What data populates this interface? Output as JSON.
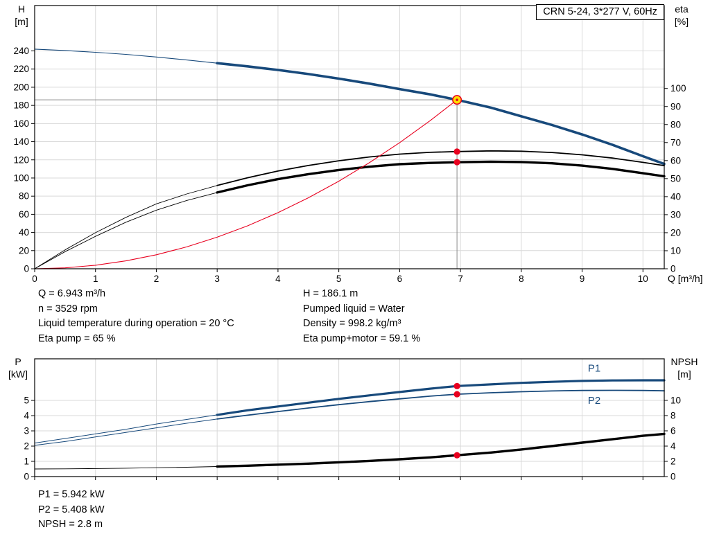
{
  "colors": {
    "curve_blue": "#17497b",
    "curve_black": "#000000",
    "curve_red": "#e8001f",
    "marker_red": "#e8001f",
    "op_fill": "#ffdf00",
    "grid": "#d9d9d9",
    "marker_line": "#8a8a8a"
  },
  "top_info": {
    "left": [
      "Q = 6.943 m³/h",
      "n = 3529 rpm",
      "Liquid temperature during operation = 20 °C",
      "Eta pump = 65 %"
    ],
    "right": [
      "H = 186.1 m",
      "Pumped liquid = Water",
      "Density = 998.2 kg/m³",
      "Eta pump+motor = 59.1 %"
    ]
  },
  "bottom_info": [
    "P1 = 5.942 kW",
    "P2 = 5.408 kW",
    "NPSH = 2.8 m"
  ],
  "chart_data": [
    {
      "name": "hq-eta-chart",
      "type": "line",
      "title": "CRN 5-24, 3*277 V, 60Hz",
      "x_axis": {
        "label": "Q [m³/h]",
        "min": 0,
        "max": 10.35,
        "ticks": [
          0,
          1,
          2,
          3,
          4,
          5,
          6,
          7,
          8,
          9,
          10
        ],
        "show_labels": true
      },
      "y_left": {
        "label": "H",
        "unit": "[m]",
        "min": 0,
        "max": 290,
        "ticks": [
          0,
          20,
          40,
          60,
          80,
          100,
          120,
          140,
          160,
          180,
          200,
          220,
          240
        ]
      },
      "y_right": {
        "label": "eta",
        "unit": "[%]",
        "min": 0,
        "max": 146,
        "ticks": [
          0,
          10,
          20,
          30,
          40,
          50,
          60,
          70,
          80,
          90,
          100
        ]
      },
      "marker_lines": [
        {
          "type": "v",
          "q": 6.943,
          "from": 0,
          "to": 186.1,
          "axis": "left"
        },
        {
          "type": "h",
          "v": 186.1,
          "from_q": 0,
          "to_q": 6.943,
          "axis": "left"
        }
      ],
      "series": [
        {
          "name": "head-curve-lead",
          "axis": "left",
          "color": "curve_blue",
          "width": 1.1,
          "points": [
            [
              0,
              242
            ],
            [
              0.5,
              240.5
            ],
            [
              1,
              238.5
            ],
            [
              1.5,
              236.2
            ],
            [
              2,
              233.3
            ],
            [
              2.5,
              230
            ],
            [
              3,
              226.5
            ]
          ]
        },
        {
          "name": "head-curve",
          "axis": "left",
          "color": "curve_blue",
          "width": 3.6,
          "points": [
            [
              3,
              226.5
            ],
            [
              3.5,
              223
            ],
            [
              4,
              219
            ],
            [
              4.5,
              214.5
            ],
            [
              5,
              209.5
            ],
            [
              5.5,
              204
            ],
            [
              6,
              198
            ],
            [
              6.5,
              192.2
            ],
            [
              6.943,
              186.1
            ],
            [
              7.5,
              177.5
            ],
            [
              8,
              168
            ],
            [
              8.5,
              158.5
            ],
            [
              9,
              148
            ],
            [
              9.5,
              136.5
            ],
            [
              10,
              124
            ],
            [
              10.35,
              115.5
            ]
          ]
        },
        {
          "name": "eta-pump-curve-lead",
          "axis": "right",
          "color": "curve_black",
          "width": 0.9,
          "points": [
            [
              0,
              0
            ],
            [
              0.5,
              10.5
            ],
            [
              1,
              20
            ],
            [
              1.5,
              28.5
            ],
            [
              2,
              36
            ],
            [
              2.5,
              41.5
            ],
            [
              3,
              46.2
            ]
          ]
        },
        {
          "name": "eta-pump-curve",
          "axis": "right",
          "color": "curve_black",
          "width": 1.8,
          "points": [
            [
              3,
              46.2
            ],
            [
              3.5,
              50.5
            ],
            [
              4,
              54.2
            ],
            [
              4.5,
              57.3
            ],
            [
              5,
              59.9
            ],
            [
              5.5,
              62
            ],
            [
              6,
              63.6
            ],
            [
              6.5,
              64.6
            ],
            [
              6.943,
              65
            ],
            [
              7.5,
              65.4
            ],
            [
              8,
              65.2
            ],
            [
              8.5,
              64.5
            ],
            [
              9,
              63.2
            ],
            [
              9.5,
              61.4
            ],
            [
              10,
              59
            ],
            [
              10.35,
              57.2
            ]
          ]
        },
        {
          "name": "eta-total-curve-lead",
          "axis": "right",
          "color": "curve_black",
          "width": 0.9,
          "points": [
            [
              0,
              0
            ],
            [
              0.5,
              9.5
            ],
            [
              1,
              18
            ],
            [
              1.5,
              25.8
            ],
            [
              2,
              32.5
            ],
            [
              2.5,
              37.9
            ],
            [
              3,
              42.3
            ]
          ]
        },
        {
          "name": "eta-total-curve",
          "axis": "right",
          "color": "curve_black",
          "width": 3.4,
          "points": [
            [
              3,
              42.3
            ],
            [
              3.5,
              46.3
            ],
            [
              4,
              49.7
            ],
            [
              4.5,
              52.5
            ],
            [
              5,
              54.8
            ],
            [
              5.5,
              56.6
            ],
            [
              6,
              58
            ],
            [
              6.5,
              58.7
            ],
            [
              6.943,
              59.1
            ],
            [
              7.5,
              59.4
            ],
            [
              8,
              59.2
            ],
            [
              8.5,
              58.5
            ],
            [
              9,
              57.2
            ],
            [
              9.5,
              55.4
            ],
            [
              10,
              53
            ],
            [
              10.35,
              51.3
            ]
          ]
        },
        {
          "name": "system-curve",
          "axis": "left",
          "color": "curve_red",
          "width": 1.1,
          "points": [
            [
              0,
              0
            ],
            [
              0.5,
              1
            ],
            [
              1,
              3.9
            ],
            [
              1.5,
              8.7
            ],
            [
              2,
              15.4
            ],
            [
              2.5,
              24.1
            ],
            [
              3,
              34.8
            ],
            [
              3.5,
              47.3
            ],
            [
              4,
              61.8
            ],
            [
              4.5,
              78.2
            ],
            [
              5,
              96.5
            ],
            [
              5.5,
              116.8
            ],
            [
              6,
              139
            ],
            [
              6.5,
              163.1
            ],
            [
              6.943,
              186.1
            ]
          ]
        }
      ],
      "point_markers": [
        {
          "q": 6.943,
          "v": 65,
          "axis": "right"
        },
        {
          "q": 6.943,
          "v": 59.1,
          "axis": "right"
        }
      ],
      "operating_point": {
        "q": 6.943,
        "h": 186.1
      }
    },
    {
      "name": "power-npsh-chart",
      "type": "line",
      "x_axis": {
        "label": "",
        "min": 0,
        "max": 10.35,
        "ticks": [
          0,
          1,
          2,
          3,
          4,
          5,
          6,
          7,
          8,
          9,
          10
        ],
        "show_labels": false
      },
      "y_left": {
        "label": "P",
        "unit": "[kW]",
        "min": 0,
        "max": 7.73,
        "ticks": [
          0,
          1,
          2,
          3,
          4,
          5
        ]
      },
      "y_right": {
        "label": "NPSH",
        "unit": "[m]",
        "min": 0,
        "max": 15.45,
        "ticks": [
          0,
          2,
          4,
          6,
          8,
          10
        ]
      },
      "marker_lines": [],
      "series": [
        {
          "name": "p1-curve-lead",
          "axis": "left",
          "color": "curve_blue",
          "width": 1,
          "points": [
            [
              0,
              2.2
            ],
            [
              0.5,
              2.5
            ],
            [
              1,
              2.8
            ],
            [
              1.5,
              3.1
            ],
            [
              2,
              3.45
            ],
            [
              2.5,
              3.75
            ],
            [
              3,
              4.05
            ]
          ]
        },
        {
          "name": "p1-curve",
          "axis": "left",
          "color": "curve_blue",
          "width": 3.2,
          "points": [
            [
              3,
              4.05
            ],
            [
              3.5,
              4.35
            ],
            [
              4,
              4.6
            ],
            [
              4.5,
              4.85
            ],
            [
              5,
              5.1
            ],
            [
              5.5,
              5.33
            ],
            [
              6,
              5.55
            ],
            [
              6.5,
              5.77
            ],
            [
              6.943,
              5.942
            ],
            [
              7.5,
              6.05
            ],
            [
              8,
              6.15
            ],
            [
              8.5,
              6.22
            ],
            [
              9,
              6.28
            ],
            [
              9.5,
              6.31
            ],
            [
              10,
              6.32
            ],
            [
              10.35,
              6.32
            ]
          ]
        },
        {
          "name": "p2-curve-lead",
          "axis": "left",
          "color": "curve_blue",
          "width": 1,
          "points": [
            [
              0,
              2.05
            ],
            [
              0.5,
              2.3
            ],
            [
              1,
              2.6
            ],
            [
              1.5,
              2.9
            ],
            [
              2,
              3.2
            ],
            [
              2.5,
              3.5
            ],
            [
              3,
              3.78
            ]
          ]
        },
        {
          "name": "p2-curve",
          "axis": "left",
          "color": "curve_blue",
          "width": 1.8,
          "points": [
            [
              3,
              3.78
            ],
            [
              3.5,
              4.03
            ],
            [
              4,
              4.27
            ],
            [
              4.5,
              4.5
            ],
            [
              5,
              4.72
            ],
            [
              5.5,
              4.92
            ],
            [
              6,
              5.1
            ],
            [
              6.5,
              5.28
            ],
            [
              6.943,
              5.408
            ],
            [
              7.5,
              5.5
            ],
            [
              8,
              5.57
            ],
            [
              8.5,
              5.62
            ],
            [
              9,
              5.65
            ],
            [
              9.5,
              5.66
            ],
            [
              10,
              5.65
            ],
            [
              10.35,
              5.63
            ]
          ]
        },
        {
          "name": "npsh-curve-lead",
          "axis": "right",
          "color": "curve_black",
          "width": 0.9,
          "points": [
            [
              0,
              1.0
            ],
            [
              0.5,
              1.02
            ],
            [
              1,
              1.05
            ],
            [
              1.5,
              1.1
            ],
            [
              2,
              1.16
            ],
            [
              2.5,
              1.23
            ],
            [
              3,
              1.32
            ]
          ]
        },
        {
          "name": "npsh-curve",
          "axis": "right",
          "color": "curve_black",
          "width": 3.4,
          "points": [
            [
              3,
              1.32
            ],
            [
              3.5,
              1.43
            ],
            [
              4,
              1.56
            ],
            [
              4.5,
              1.7
            ],
            [
              5,
              1.87
            ],
            [
              5.5,
              2.05
            ],
            [
              6,
              2.27
            ],
            [
              6.5,
              2.52
            ],
            [
              6.943,
              2.8
            ],
            [
              7.5,
              3.15
            ],
            [
              8,
              3.55
            ],
            [
              8.5,
              4
            ],
            [
              9,
              4.45
            ],
            [
              9.5,
              4.9
            ],
            [
              10,
              5.35
            ],
            [
              10.35,
              5.6
            ]
          ]
        }
      ],
      "point_markers": [
        {
          "q": 6.943,
          "v": 5.942,
          "axis": "left"
        },
        {
          "q": 6.943,
          "v": 5.408,
          "axis": "left"
        },
        {
          "q": 6.943,
          "v": 2.8,
          "axis": "right"
        }
      ],
      "labels": [
        {
          "text": "P1",
          "q": 9.2,
          "v": 6.9,
          "axis": "left"
        },
        {
          "text": "P2",
          "q": 9.2,
          "v": 4.78,
          "axis": "left"
        }
      ]
    }
  ]
}
